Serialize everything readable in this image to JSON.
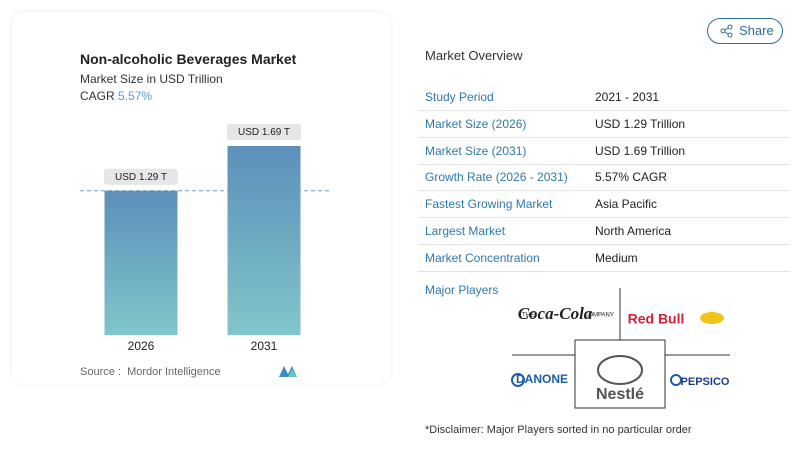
{
  "chart_data": {
    "type": "bar",
    "title": "Non-alcoholic Beverages Market",
    "subtitle": "Market Size in USD Trillion",
    "cagr_label": "CAGR",
    "cagr": "5.57%",
    "categories": [
      "2026",
      "2031"
    ],
    "values": [
      1.29,
      1.69
    ],
    "value_labels": [
      "USD 1.29 T",
      "USD 1.69 T"
    ],
    "color": "#6aa6c4",
    "source_label": "Source :",
    "source": "Mordor Intelligence"
  },
  "share": "Share",
  "overview": {
    "title": "Market Overview",
    "rows": [
      {
        "label": "Study Period",
        "value": "2021 - 2031"
      },
      {
        "label": "Market Size (2026)",
        "value": "USD 1.29 Trillion"
      },
      {
        "label": "Market Size (2031)",
        "value": "USD 1.69 Trillion"
      },
      {
        "label": "Growth Rate (2026 - 2031)",
        "value": "5.57% CAGR"
      },
      {
        "label": "Fastest Growing Market",
        "value": "Asia Pacific"
      },
      {
        "label": "Largest Market",
        "value": "North America"
      },
      {
        "label": "Market Concentration",
        "value": "Medium"
      }
    ]
  },
  "major_players": {
    "title": "Major Players",
    "logos": [
      "Coca-Cola",
      "Red Bull",
      "DANONE",
      "Nestlé",
      "PEPSICO"
    ]
  },
  "disclaimer": "*Disclaimer: Major Players sorted in no particular order"
}
